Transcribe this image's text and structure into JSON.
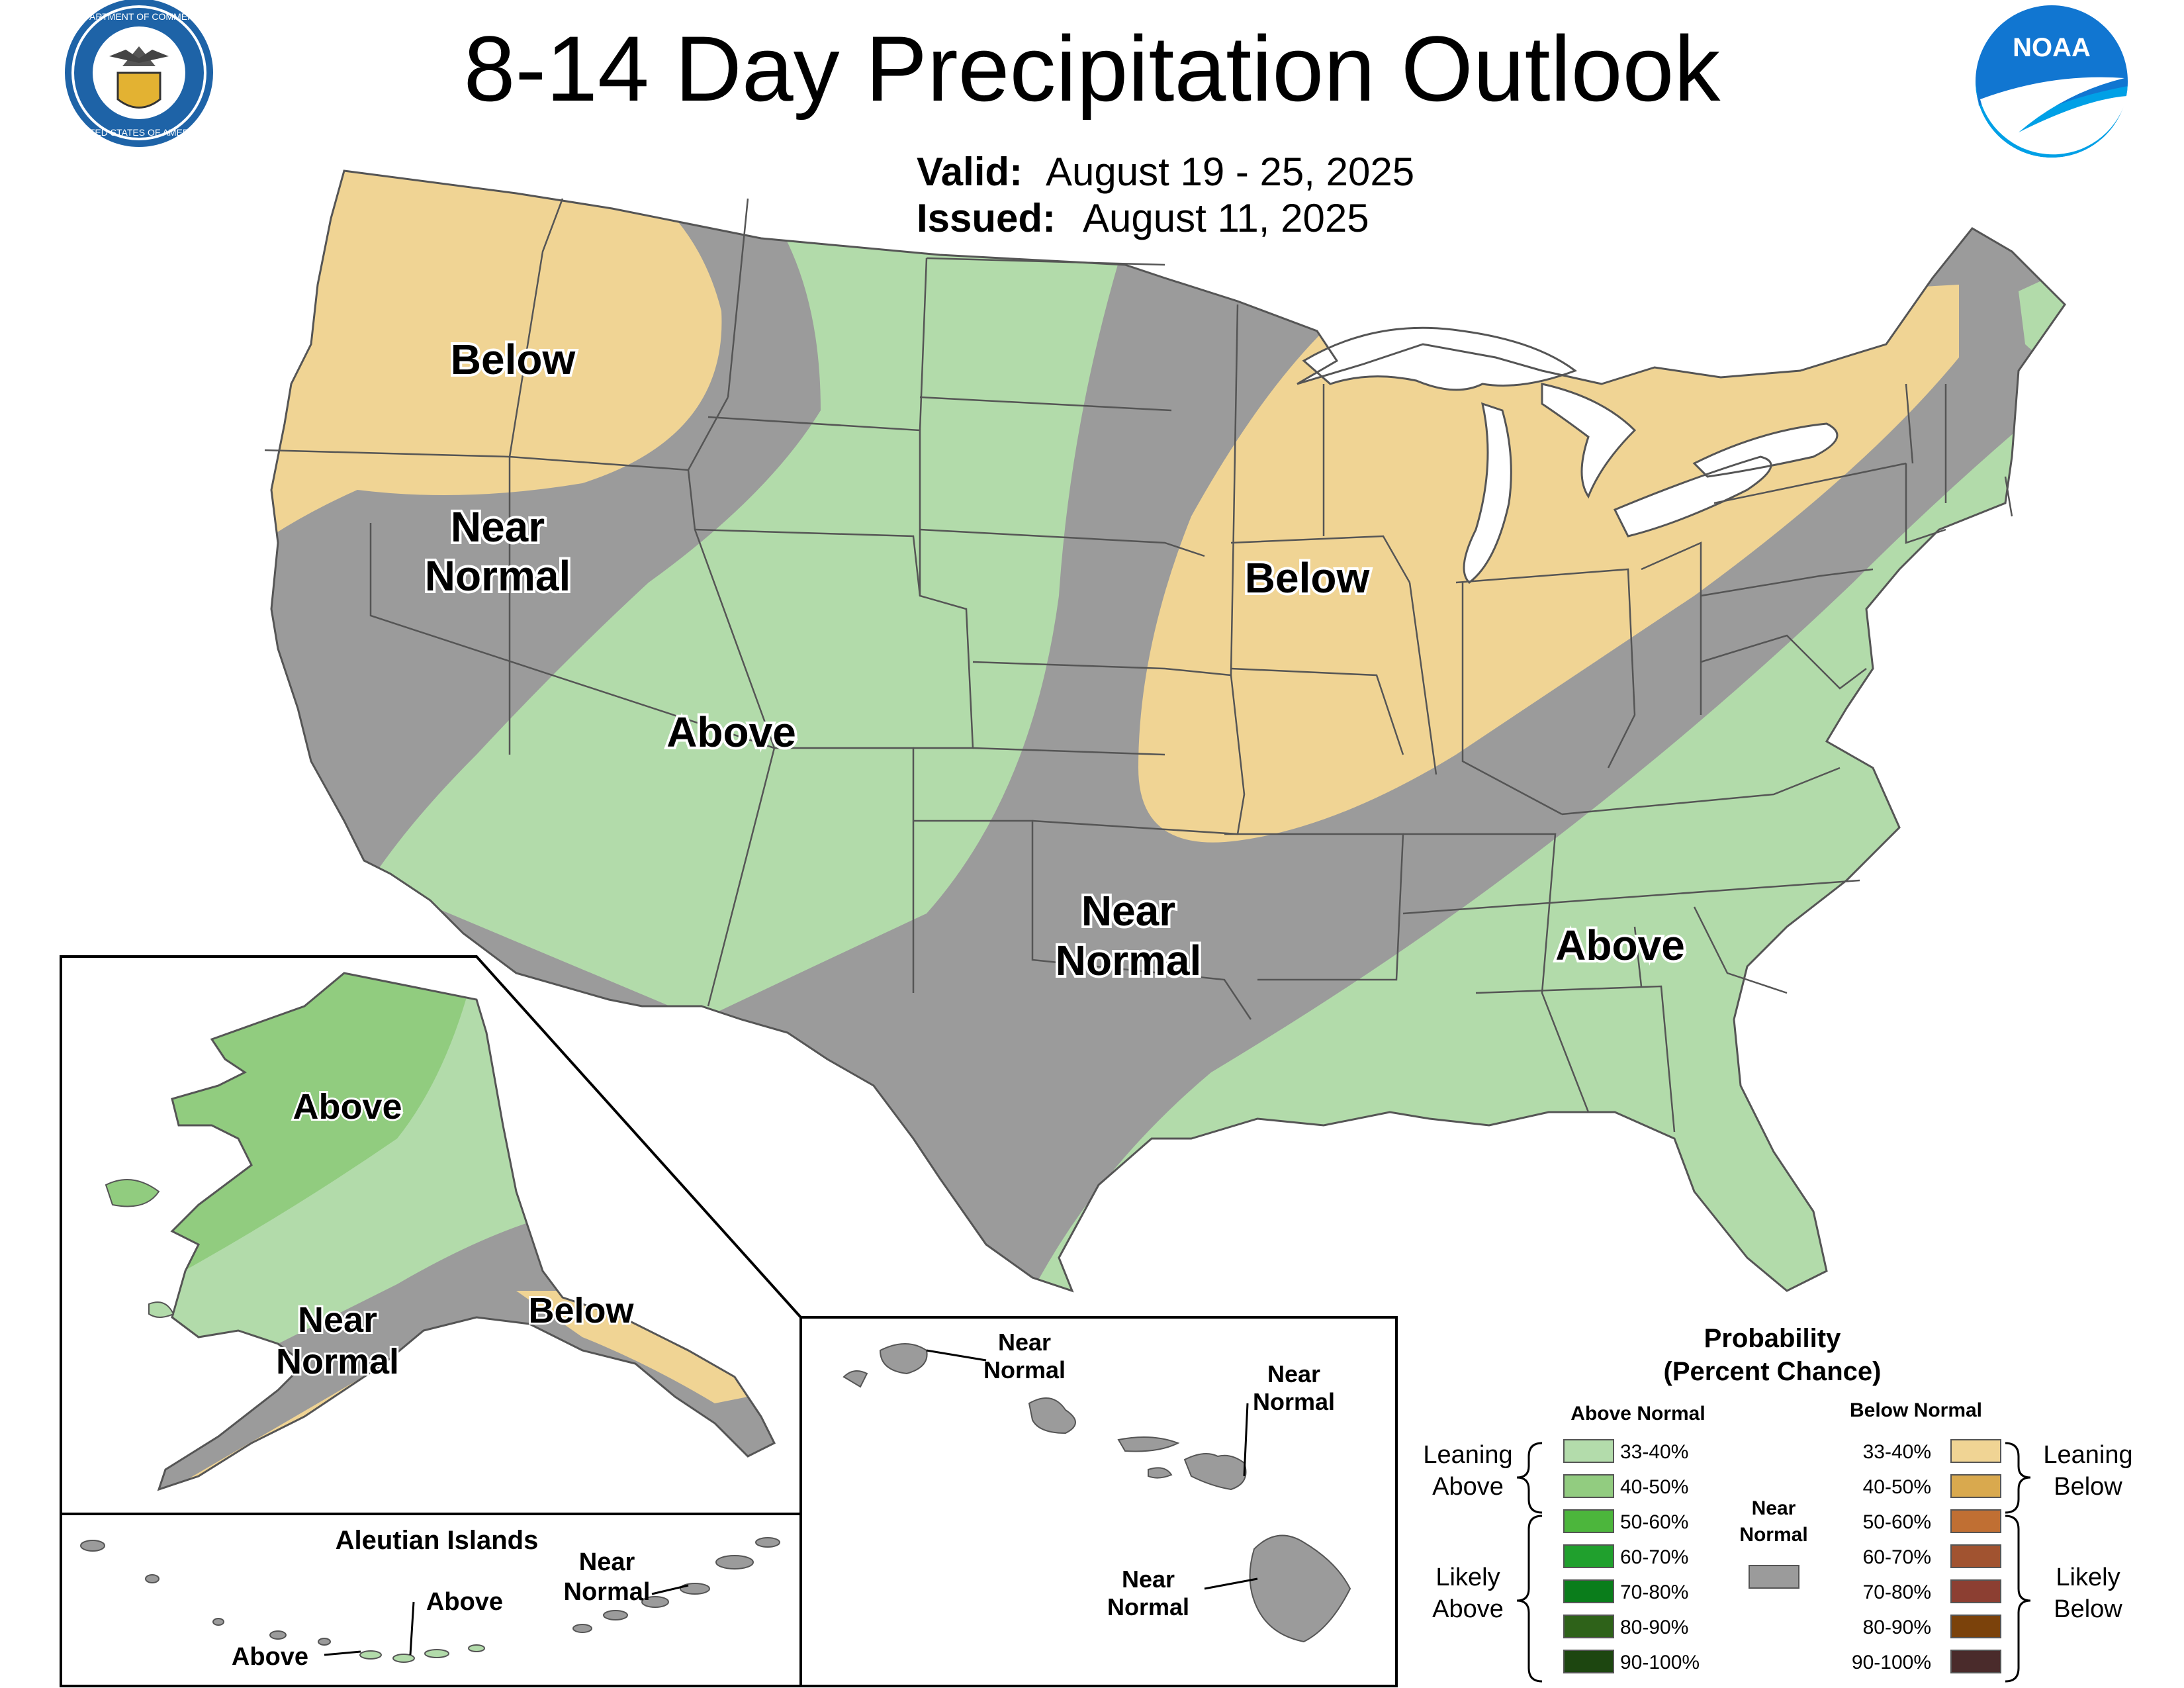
{
  "header": {
    "title": "8-14 Day Precipitation Outlook",
    "valid_label": "Valid:",
    "valid_value": "August 19 - 25, 2025",
    "issued_label": "Issued:",
    "issued_value": "August 11, 2025",
    "doc_seal_top": "DEPARTMENT OF COMMERCE",
    "doc_seal_bottom": "UNITED STATES OF AMERICA",
    "noaa_logo_text": "NOAA"
  },
  "colors": {
    "leaning_above": "#b2dbaa",
    "above_40_50": "#91cc7f",
    "below_33_40": "#f0d494",
    "below_40_50": "#d9a94e",
    "near_normal": "#9b9b9b",
    "border": "#555555"
  },
  "conus_labels": {
    "nw_below": "Below",
    "west_near_1": "Near",
    "west_near_2": "Normal",
    "sw_above": "Above",
    "midwest_below": "Below",
    "south_near_1": "Near",
    "south_near_2": "Normal",
    "se_above": "Above"
  },
  "alaska_labels": {
    "above": "Above",
    "near_1": "Near",
    "near_2": "Normal",
    "below": "Below"
  },
  "aleutians": {
    "title": "Aleutian Islands",
    "above_1": "Above",
    "above_2": "Above",
    "near_1": "Near",
    "near_2": "Normal"
  },
  "hawaii_labels": {
    "kauai_1": "Near",
    "kauai_2": "Normal",
    "maui_1": "Near",
    "maui_2": "Normal",
    "big_1": "Near",
    "big_2": "Normal"
  },
  "legend": {
    "title_1": "Probability",
    "title_2": "(Percent Chance)",
    "above_header": "Above Normal",
    "below_header": "Below Normal",
    "near_1": "Near",
    "near_2": "Normal",
    "leaning_above_1": "Leaning",
    "leaning_above_2": "Above",
    "likely_above_1": "Likely",
    "likely_above_2": "Above",
    "leaning_below_1": "Leaning",
    "leaning_below_2": "Below",
    "likely_below_1": "Likely",
    "likely_below_2": "Below",
    "above_ranges": [
      "33-40%",
      "40-50%",
      "50-60%",
      "60-70%",
      "70-80%",
      "80-90%",
      "90-100%"
    ],
    "below_ranges": [
      "33-40%",
      "40-50%",
      "50-60%",
      "60-70%",
      "70-80%",
      "80-90%",
      "90-100%"
    ],
    "above_colors": [
      "#b3dcab",
      "#92cc80",
      "#4cb63c",
      "#20a02d",
      "#0a7d1b",
      "#2e6219",
      "#1d4610"
    ],
    "below_colors": [
      "#f0d494",
      "#d9a94e",
      "#c06f33",
      "#a15330",
      "#8c3f32",
      "#7b420b",
      "#4a2b2b"
    ]
  }
}
